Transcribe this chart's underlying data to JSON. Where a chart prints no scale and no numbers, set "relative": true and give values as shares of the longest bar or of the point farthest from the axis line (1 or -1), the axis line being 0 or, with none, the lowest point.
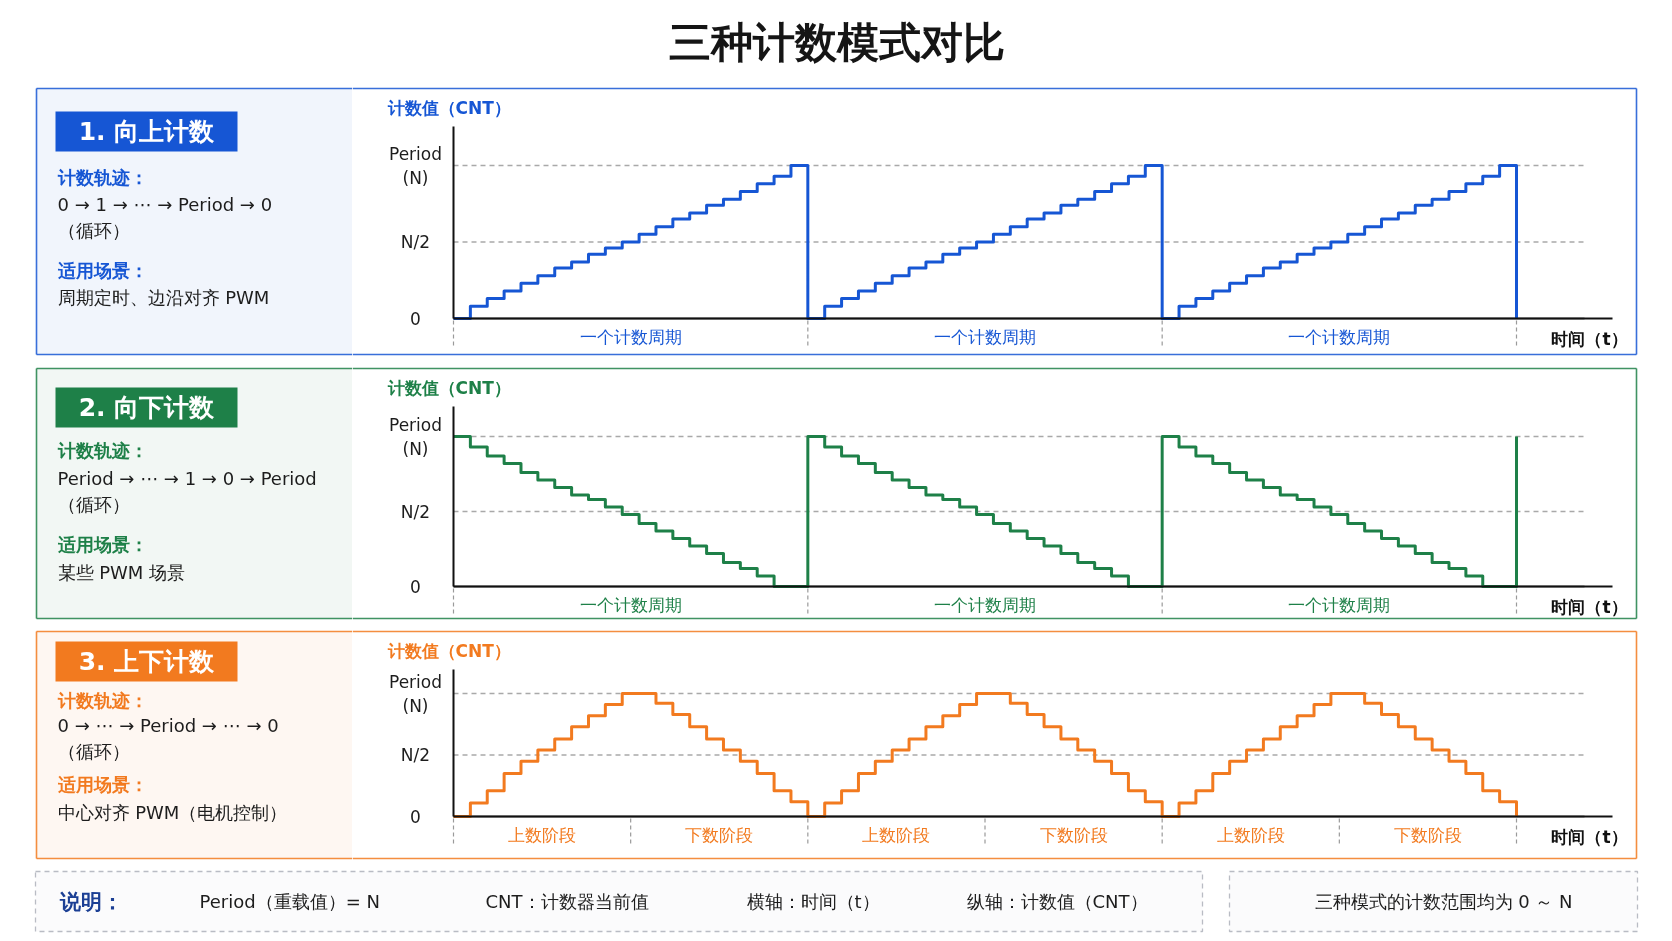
{
  "chart_data": [
    {
      "type": "other",
      "title": "三种计数模式对比"
    },
    {
      "type": "other",
      "title": "1. 向上计数",
      "annotations": [
        "计数轨迹：",
        "0 → 1 → ⋯ → Period → 0",
        "（循环）",
        "适用场景：",
        "周期定时、边沿对齐 PWM"
      ]
    },
    {
      "type": "step",
      "relative": true,
      "ylabel": "计数值（CNT）",
      "xlabel": "时间（t）",
      "categories": [
        null,
        null,
        null,
        null,
        null,
        null,
        null,
        null,
        null,
        null,
        null,
        null,
        null,
        null,
        null,
        null,
        null,
        null,
        null,
        null,
        null,
        null,
        null,
        null,
        null,
        null,
        null,
        null,
        null,
        null,
        null,
        null,
        null,
        null,
        null,
        null,
        null,
        null,
        null,
        null,
        null,
        null,
        null,
        null,
        null,
        null,
        null,
        null,
        null,
        null,
        null,
        null,
        null,
        null,
        null,
        null,
        null,
        null,
        null,
        null,
        null,
        null,
        null,
        null
      ],
      "series": [
        {
          "color": "#1656d4",
          "values": [
            0,
            0.08,
            0.13,
            0.18,
            0.23,
            0.28,
            0.33,
            0.37,
            0.42,
            0.46,
            0.5,
            0.55,
            0.6,
            0.65,
            0.69,
            0.74,
            0.78,
            0.83,
            0.88,
            0.93,
            1,
            0,
            0.08,
            0.13,
            0.18,
            0.23,
            0.28,
            0.33,
            0.37,
            0.42,
            0.46,
            0.5,
            0.55,
            0.6,
            0.65,
            0.69,
            0.74,
            0.78,
            0.83,
            0.88,
            0.93,
            1,
            0,
            0.08,
            0.13,
            0.18,
            0.23,
            0.28,
            0.33,
            0.37,
            0.42,
            0.46,
            0.5,
            0.55,
            0.6,
            0.65,
            0.69,
            0.74,
            0.78,
            0.83,
            0.88,
            0.93,
            1,
            0
          ]
        }
      ],
      "ref_lines": [
        {
          "axis": "y",
          "value": 0,
          "label": "0",
          "color": "#111111",
          "line_style": "solid"
        },
        {
          "axis": "y",
          "value": 0.5,
          "label": "N/2",
          "color": "#a9a9a9",
          "line_style": "dashed"
        },
        {
          "axis": "y",
          "value": 1,
          "label": "Period\n(N)",
          "color": "#a9a9a9",
          "line_style": "dashed"
        }
      ],
      "annotations": [
        "一个计数周期",
        "一个计数周期",
        "一个计数周期"
      ]
    },
    {
      "type": "other",
      "title": "2. 向下计数",
      "annotations": [
        "计数轨迹：",
        "Period → ⋯ → 1 → 0 → Period",
        "（循环）",
        "适用场景：",
        "某些 PWM 场景"
      ]
    },
    {
      "type": "step",
      "relative": true,
      "ylabel": "计数值（CNT）",
      "xlabel": "时间（t）",
      "categories": [
        null,
        null,
        null,
        null,
        null,
        null,
        null,
        null,
        null,
        null,
        null,
        null,
        null,
        null,
        null,
        null,
        null,
        null,
        null,
        null,
        null,
        null,
        null,
        null,
        null,
        null,
        null,
        null,
        null,
        null,
        null,
        null,
        null,
        null,
        null,
        null,
        null,
        null,
        null,
        null,
        null,
        null,
        null,
        null,
        null,
        null,
        null,
        null,
        null,
        null,
        null,
        null,
        null,
        null,
        null,
        null,
        null,
        null,
        null,
        null,
        null,
        null,
        null,
        null
      ],
      "series": [
        {
          "color": "#1e8048",
          "values": [
            1,
            0.93,
            0.87,
            0.82,
            0.76,
            0.71,
            0.66,
            0.61,
            0.58,
            0.53,
            0.48,
            0.42,
            0.37,
            0.32,
            0.27,
            0.22,
            0.16,
            0.12,
            0.07,
            0,
            0,
            1,
            0.93,
            0.87,
            0.82,
            0.76,
            0.71,
            0.66,
            0.61,
            0.58,
            0.53,
            0.48,
            0.42,
            0.37,
            0.32,
            0.27,
            0.22,
            0.16,
            0.12,
            0.07,
            0,
            0,
            1,
            0.93,
            0.87,
            0.82,
            0.76,
            0.71,
            0.66,
            0.61,
            0.58,
            0.53,
            0.48,
            0.42,
            0.37,
            0.32,
            0.27,
            0.22,
            0.16,
            0.12,
            0.07,
            0,
            0,
            1
          ]
        }
      ],
      "ref_lines": [
        {
          "axis": "y",
          "value": 0,
          "label": "0",
          "color": "#111111",
          "line_style": "solid"
        },
        {
          "axis": "y",
          "value": 0.5,
          "label": "N/2",
          "color": "#a9a9a9",
          "line_style": "dashed"
        },
        {
          "axis": "y",
          "value": 1,
          "label": "Period\n(N)",
          "color": "#a9a9a9",
          "line_style": "dashed"
        }
      ],
      "annotations": [
        "一个计数周期",
        "一个计数周期",
        "一个计数周期"
      ]
    },
    {
      "type": "other",
      "title": "3. 上下计数",
      "annotations": [
        "计数轨迹：",
        "0 → ⋯ → Period → ⋯ → 0",
        "（循环）",
        "适用场景：",
        "中心对齐 PWM（电机控制）"
      ]
    },
    {
      "type": "step",
      "relative": true,
      "ylabel": "计数值（CNT）",
      "xlabel": "时间（t）",
      "categories": [
        null,
        null,
        null,
        null,
        null,
        null,
        null,
        null,
        null,
        null,
        null,
        null,
        null,
        null,
        null,
        null,
        null,
        null,
        null,
        null,
        null,
        null,
        null,
        null,
        null,
        null,
        null,
        null,
        null,
        null,
        null,
        null,
        null,
        null,
        null,
        null,
        null,
        null,
        null,
        null,
        null,
        null,
        null,
        null,
        null,
        null,
        null,
        null,
        null,
        null,
        null,
        null,
        null,
        null,
        null,
        null,
        null,
        null,
        null,
        null,
        null,
        null,
        null,
        null
      ],
      "series": [
        {
          "color": "#f27a1f",
          "values": [
            0,
            0.11,
            0.21,
            0.35,
            0.45,
            0.54,
            0.63,
            0.73,
            0.82,
            0.91,
            1,
            1,
            0.92,
            0.83,
            0.73,
            0.63,
            0.54,
            0.45,
            0.35,
            0.21,
            0.12,
            0,
            0.11,
            0.21,
            0.35,
            0.45,
            0.54,
            0.63,
            0.73,
            0.82,
            0.91,
            1,
            1,
            0.92,
            0.83,
            0.73,
            0.63,
            0.54,
            0.45,
            0.35,
            0.21,
            0.12,
            0,
            0.11,
            0.21,
            0.35,
            0.45,
            0.54,
            0.63,
            0.73,
            0.82,
            0.91,
            1,
            1,
            0.92,
            0.83,
            0.73,
            0.63,
            0.54,
            0.45,
            0.35,
            0.21,
            0.12,
            0
          ]
        }
      ],
      "ref_lines": [
        {
          "axis": "y",
          "value": 0,
          "label": "0",
          "color": "#111111",
          "line_style": "solid"
        },
        {
          "axis": "y",
          "value": 0.5,
          "label": "N/2",
          "color": "#a9a9a9",
          "line_style": "dashed"
        },
        {
          "axis": "y",
          "value": 1,
          "label": "Period\n(N)",
          "color": "#a9a9a9",
          "line_style": "dashed"
        }
      ],
      "annotations": [
        "上数阶段",
        "下数阶段",
        "上数阶段",
        "下数阶段",
        "上数阶段",
        "下数阶段"
      ]
    },
    {
      "type": "other",
      "title": "说明：",
      "annotations": [
        "Period（重载值）= N",
        "CNT：计数器当前值",
        "横轴：时间（t）",
        "纵轴：计数值（CNT）"
      ]
    },
    {
      "type": "other",
      "annotations": [
        "三种模式的计数范围均为 0 ～ N"
      ]
    }
  ]
}
